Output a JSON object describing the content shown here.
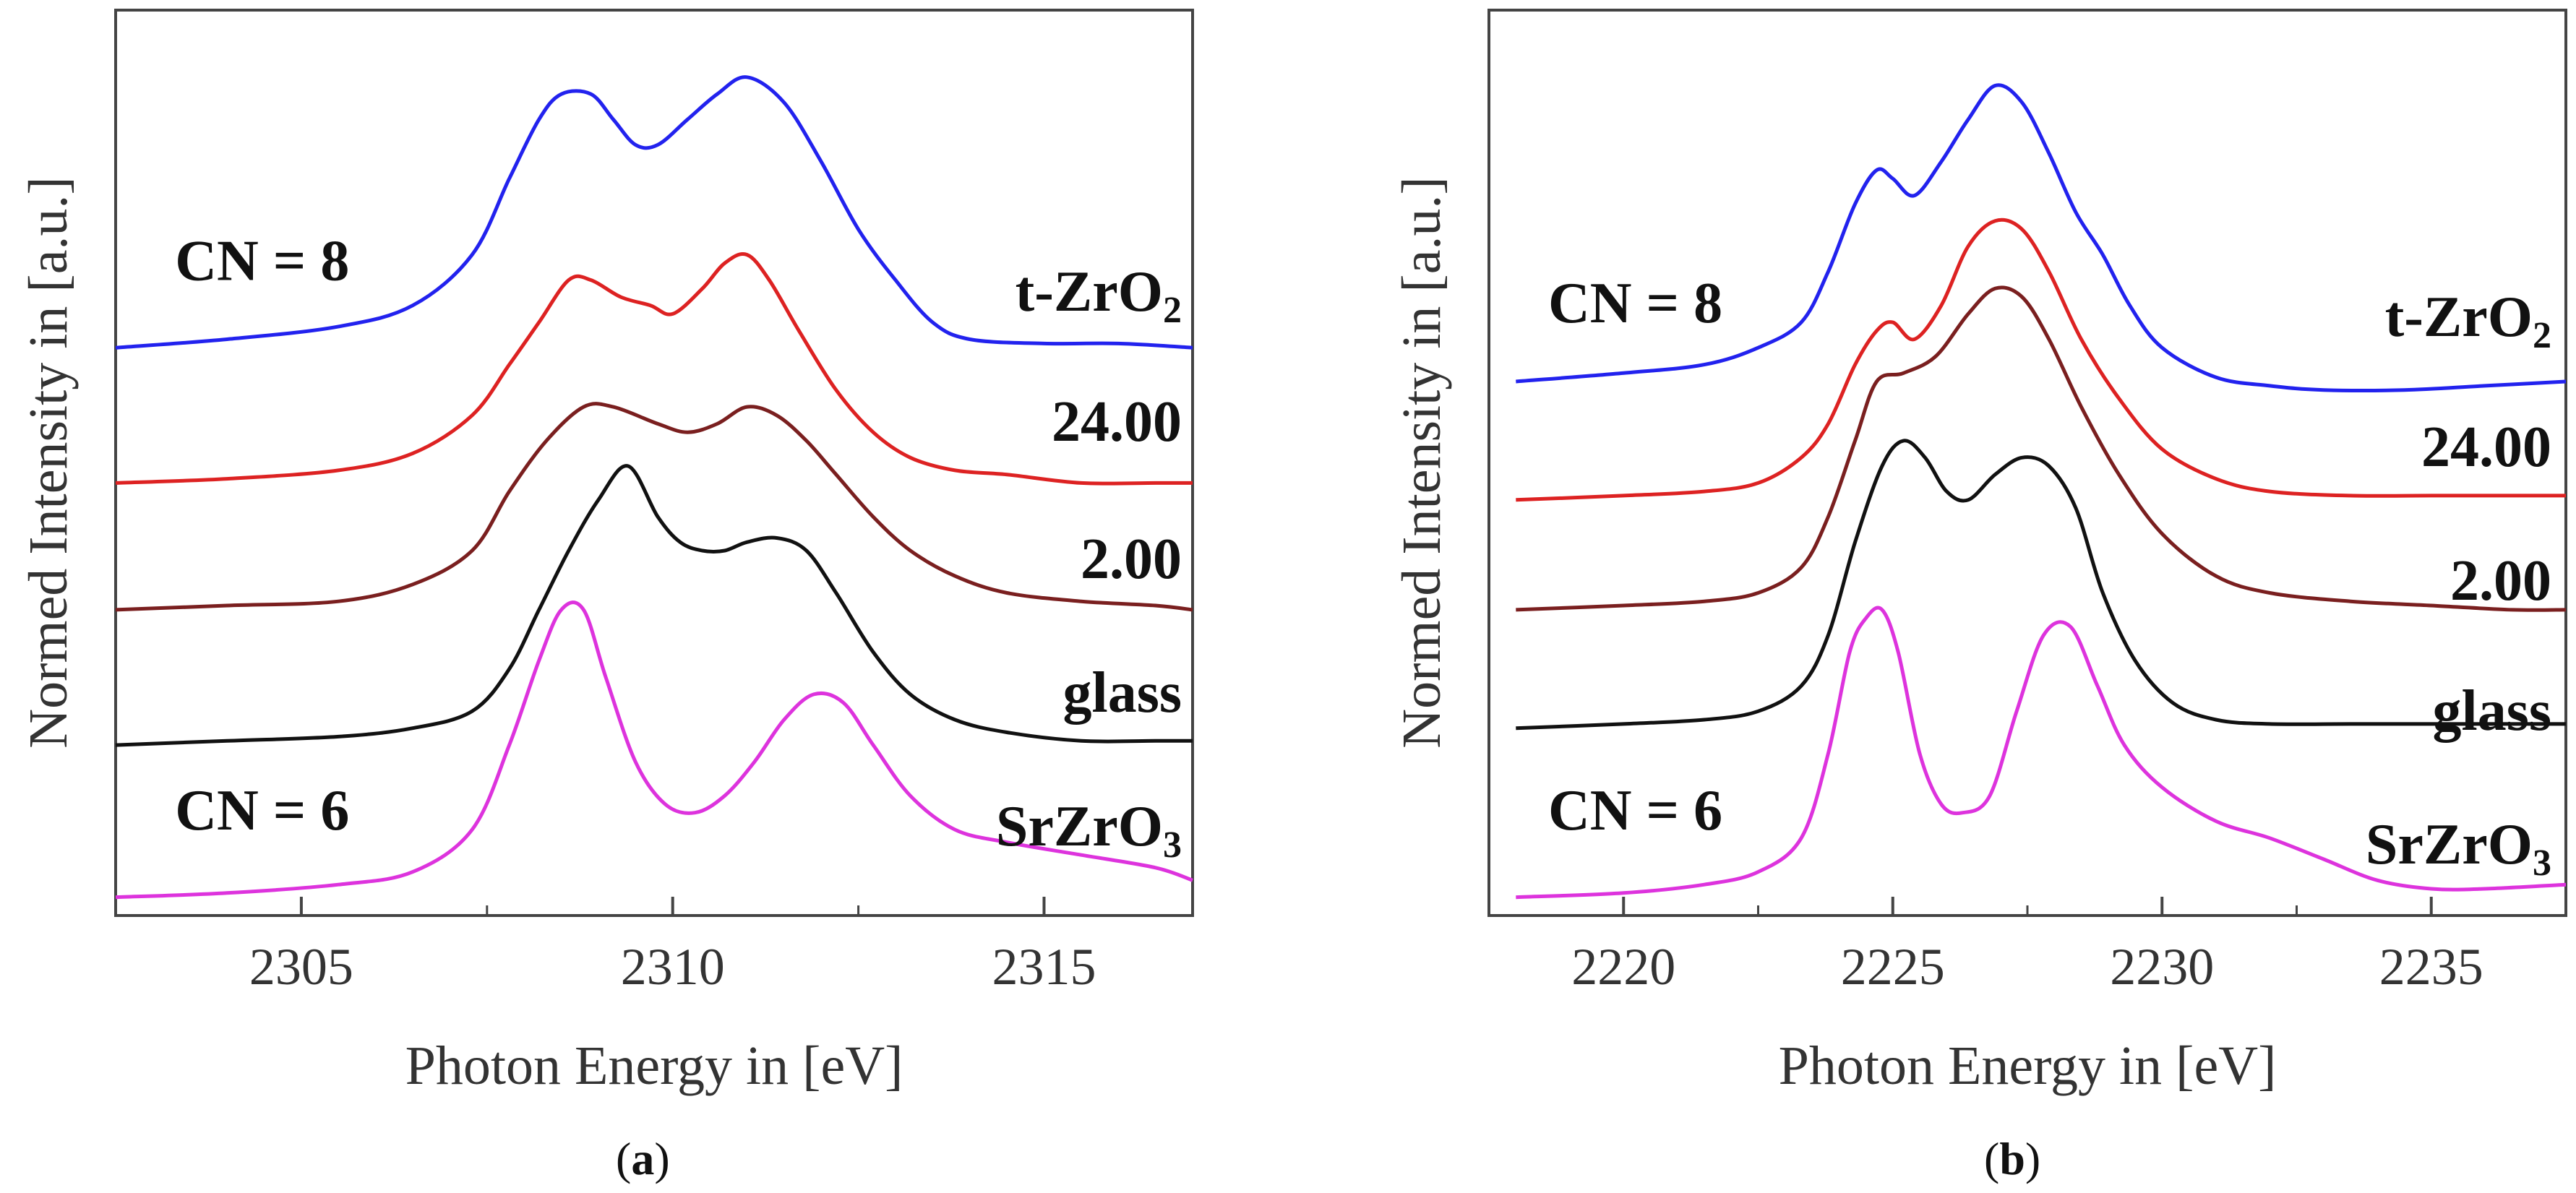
{
  "chart_data": [
    {
      "type": "line",
      "panel_label": "a",
      "xlabel": "Photon Energy in [eV]",
      "ylabel": "Normed Intensity in [a.u.]",
      "xlim": [
        2302.5,
        2317.0
      ],
      "ylim": [
        0,
        100
      ],
      "xticks": [
        2305,
        2310,
        2315
      ],
      "yticks_shown": false,
      "annotations": [
        {
          "text": "CN = 8",
          "x": 2303.3,
          "y": 72
        },
        {
          "text": "CN = 6",
          "x": 2303.3,
          "y": 7
        }
      ],
      "series": [
        {
          "name": "t-ZrO2",
          "label_main": "t-ZrO",
          "label_sub": "2",
          "color": "#2222ee",
          "x": [
            2302.5,
            2304,
            2305.5,
            2306.5,
            2307.3,
            2307.8,
            2308.2,
            2308.5,
            2308.9,
            2309.2,
            2309.5,
            2309.8,
            2310.2,
            2310.6,
            2311.0,
            2311.5,
            2312.0,
            2312.5,
            2313.0,
            2313.5,
            2314.0,
            2315.0,
            2316.0,
            2317.0
          ],
          "y": [
            64,
            65,
            66.5,
            69,
            75,
            84,
            91,
            94,
            94,
            91,
            88,
            88,
            91,
            94,
            96,
            93,
            86,
            78,
            72,
            67,
            65,
            64.5,
            64.5,
            64
          ]
        },
        {
          "name": "24.00",
          "label_main": "24.00",
          "color": "#dd2222",
          "x": [
            2302.5,
            2304,
            2305.5,
            2306.5,
            2307.3,
            2307.8,
            2308.2,
            2308.6,
            2308.9,
            2309.3,
            2309.7,
            2310.0,
            2310.4,
            2310.7,
            2311.0,
            2311.3,
            2311.7,
            2312.2,
            2312.7,
            2313.2,
            2313.8,
            2314.5,
            2315.5,
            2316.5,
            2317.0
          ],
          "y": [
            48,
            48.5,
            49.5,
            51.5,
            56,
            62,
            67,
            72,
            72,
            70,
            69,
            68,
            71,
            74,
            75,
            72,
            66,
            59,
            54,
            51,
            49.5,
            49,
            48,
            48,
            48
          ]
        },
        {
          "name": "2.00",
          "label_main": "2.00",
          "color": "#7a1f1f",
          "x": [
            2302.5,
            2304,
            2305.5,
            2306.5,
            2307.3,
            2307.8,
            2308.3,
            2308.8,
            2309.2,
            2309.8,
            2310.2,
            2310.6,
            2311.0,
            2311.4,
            2311.8,
            2312.2,
            2312.7,
            2313.2,
            2313.8,
            2314.5,
            2315.5,
            2316.5,
            2317.0
          ],
          "y": [
            33,
            33.5,
            34,
            36,
            40,
            47,
            53,
            57,
            57,
            55,
            54,
            55,
            57,
            56,
            53,
            49,
            44,
            40,
            37,
            35,
            34,
            33.5,
            33
          ]
        },
        {
          "name": "glass",
          "label_main": "glass",
          "color": "#111111",
          "x": [
            2302.5,
            2304,
            2305.5,
            2306.5,
            2307.3,
            2307.8,
            2308.2,
            2308.6,
            2309.0,
            2309.4,
            2309.8,
            2310.1,
            2310.4,
            2310.7,
            2311.0,
            2311.4,
            2311.8,
            2312.2,
            2312.7,
            2313.2,
            2313.8,
            2314.5,
            2315.5,
            2316.5,
            2317.0
          ],
          "y": [
            17,
            17.5,
            18,
            19,
            21,
            26,
            33,
            40,
            46,
            50,
            44,
            41,
            40,
            40,
            41,
            41.5,
            40,
            35,
            28,
            23,
            20,
            18.5,
            17.5,
            17.5,
            17.5
          ]
        },
        {
          "name": "SrZrO3",
          "label_main": "SrZrO",
          "label_sub": "3",
          "color": "#dd33dd",
          "x": [
            2302.5,
            2304,
            2305.5,
            2306.5,
            2307.3,
            2307.8,
            2308.2,
            2308.5,
            2308.8,
            2309.1,
            2309.5,
            2309.9,
            2310.3,
            2310.7,
            2311.1,
            2311.5,
            2311.9,
            2312.3,
            2312.7,
            2313.2,
            2313.8,
            2314.5,
            2315.5,
            2316.5,
            2317.0
          ],
          "y": [
            -1,
            -0.5,
            0.5,
            2,
            7,
            17,
            27,
            33,
            33,
            25,
            15,
            10,
            9,
            11,
            15,
            20,
            23,
            22,
            17,
            11,
            7,
            5.5,
            4,
            2.5,
            1
          ]
        }
      ]
    },
    {
      "type": "line",
      "panel_label": "b",
      "xlabel": "Photon Energy in [eV]",
      "ylabel": "Normed Intensity in [a.u.]",
      "xlim": [
        2217.5,
        2237.5
      ],
      "ylim": [
        0,
        100
      ],
      "xticks": [
        2220,
        2225,
        2230,
        2235
      ],
      "yticks_shown": false,
      "annotations": [
        {
          "text": "CN = 8",
          "x": 2218.6,
          "y": 67
        },
        {
          "text": "CN = 6",
          "x": 2218.6,
          "y": 7
        }
      ],
      "series": [
        {
          "name": "t-ZrO2",
          "label_main": "t-ZrO",
          "label_sub": "2",
          "color": "#2222ee",
          "x": [
            2218,
            2220,
            2221.5,
            2222.5,
            2223.3,
            2223.8,
            2224.3,
            2224.7,
            2225.0,
            2225.4,
            2225.9,
            2226.4,
            2226.9,
            2227.4,
            2227.9,
            2228.4,
            2228.9,
            2229.4,
            2230.0,
            2231.0,
            2232.0,
            2233.0,
            2234.5,
            2236.0,
            2237.5
          ],
          "y": [
            60,
            61,
            62,
            64,
            67,
            73,
            81,
            85,
            84,
            82,
            86,
            91,
            95,
            93,
            87,
            80,
            75,
            69,
            64,
            60.5,
            59.5,
            59,
            59,
            59.5,
            60
          ]
        },
        {
          "name": "24.00",
          "label_main": "24.00",
          "color": "#dd2222",
          "x": [
            2218,
            2220,
            2221.5,
            2222.5,
            2223.3,
            2223.8,
            2224.3,
            2224.7,
            2225.0,
            2225.4,
            2225.9,
            2226.4,
            2226.9,
            2227.4,
            2227.9,
            2228.5,
            2229.2,
            2230.0,
            2231.0,
            2232.0,
            2233.5,
            2235.0,
            2236.5,
            2237.5
          ],
          "y": [
            46,
            46.5,
            47,
            48,
            51,
            55,
            62,
            66,
            67,
            65,
            69,
            76,
            79,
            78,
            73,
            65,
            58,
            52,
            48.5,
            47,
            46.5,
            46.5,
            46.5,
            46.5
          ]
        },
        {
          "name": "2.00",
          "label_main": "2.00",
          "color": "#7a1f1f",
          "x": [
            2218,
            2220,
            2221.5,
            2222.5,
            2223.3,
            2223.8,
            2224.3,
            2224.7,
            2225.2,
            2225.8,
            2226.4,
            2226.9,
            2227.4,
            2227.9,
            2228.5,
            2229.2,
            2230.0,
            2231.0,
            2232.0,
            2233.5,
            2235.0,
            2236.5,
            2237.5
          ],
          "y": [
            33,
            33.5,
            34,
            35,
            38,
            44,
            53,
            60,
            61,
            63,
            68,
            71,
            70,
            65,
            57,
            49,
            42,
            37,
            35,
            34,
            33.5,
            33,
            33
          ]
        },
        {
          "name": "glass",
          "label_main": "glass",
          "color": "#111111",
          "x": [
            2218,
            2220,
            2221.5,
            2222.5,
            2223.3,
            2223.8,
            2224.3,
            2224.8,
            2225.2,
            2225.6,
            2226.0,
            2226.4,
            2226.9,
            2227.4,
            2227.9,
            2228.4,
            2228.9,
            2229.5,
            2230.2,
            2231.0,
            2232.0,
            2233.5,
            2235.0,
            2236.5,
            2237.5
          ],
          "y": [
            19,
            19.5,
            20,
            21,
            24,
            30,
            41,
            50,
            53,
            51,
            47,
            46,
            49,
            51,
            50,
            45,
            35,
            27,
            22,
            20,
            19.5,
            19.5,
            19.5,
            19.5,
            19.5
          ]
        },
        {
          "name": "SrZrO3",
          "label_main": "SrZrO",
          "label_sub": "3",
          "color": "#dd33dd",
          "x": [
            2218,
            2220,
            2221.5,
            2222.5,
            2223.3,
            2223.8,
            2224.2,
            2224.5,
            2224.8,
            2225.1,
            2225.5,
            2225.9,
            2226.3,
            2226.8,
            2227.3,
            2227.8,
            2228.3,
            2228.8,
            2229.3,
            2230.0,
            2231.0,
            2232.0,
            2233.0,
            2234.0,
            2235.0,
            2236.0,
            2237.5
          ],
          "y": [
            -1,
            -0.5,
            0.5,
            2,
            6,
            16,
            28,
            32,
            33,
            28,
            16,
            10,
            9,
            11,
            21,
            30,
            31,
            24,
            17,
            12,
            8,
            6,
            3.5,
            1,
            0,
            0,
            0.5
          ]
        }
      ]
    }
  ]
}
